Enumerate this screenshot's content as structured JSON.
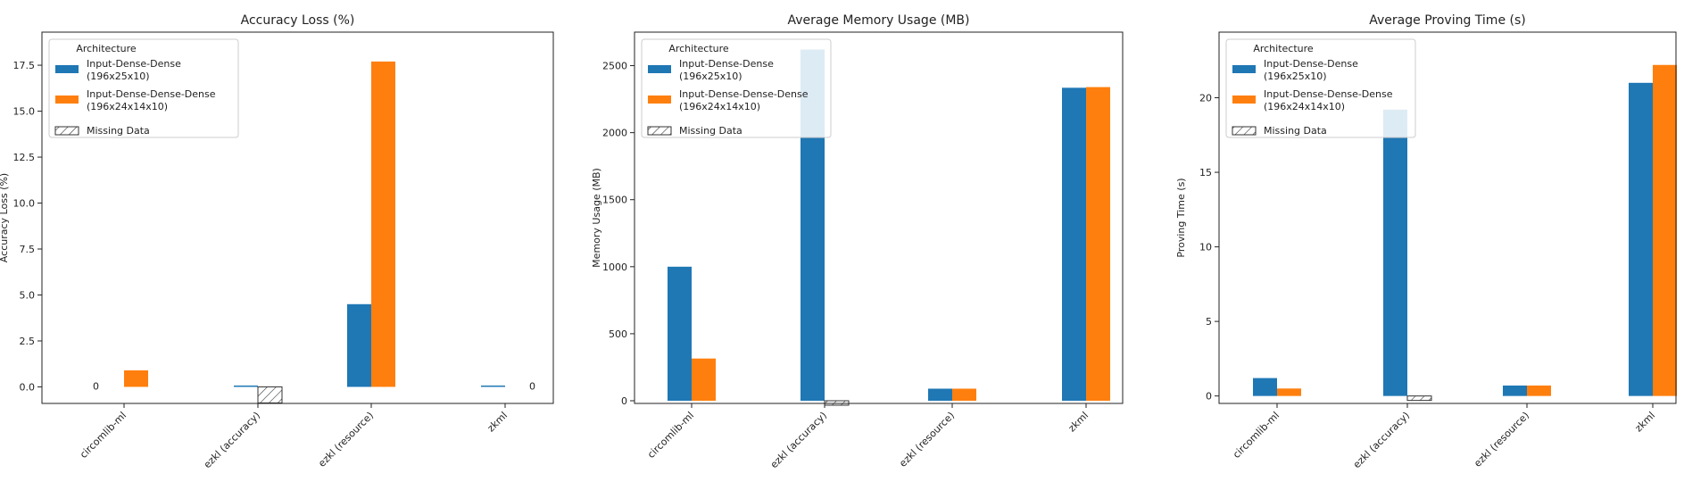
{
  "legend": {
    "title": "Architecture",
    "entries": [
      {
        "key": "idd",
        "label_line1": "Input-Dense-Dense",
        "label_line2": "(196x25x10)",
        "color": "#1f77b4"
      },
      {
        "key": "iddd",
        "label_line1": "Input-Dense-Dense-Dense",
        "label_line2": "(196x24x14x10)",
        "color": "#ff7f0e"
      },
      {
        "key": "missing",
        "label_line1": "Missing Data",
        "label_line2": "",
        "color": "#9a9a9a"
      }
    ]
  },
  "chart_data": [
    {
      "type": "bar",
      "title": "Accuracy Loss (%)",
      "xlabel": "",
      "ylabel": "Accuracy Loss (%)",
      "ylim": [
        -0.9,
        19.3
      ],
      "yticks": [
        0.0,
        2.5,
        5.0,
        7.5,
        10.0,
        12.5,
        15.0,
        17.5
      ],
      "ytick_labels": [
        "0.0",
        "2.5",
        "5.0",
        "7.5",
        "10.0",
        "12.5",
        "15.0",
        "17.5"
      ],
      "categories": [
        "circomlib-ml",
        "ezkl (accuracy)",
        "ezkl (resource)",
        "zkml"
      ],
      "legend_position": "upper-left",
      "grid": false,
      "series": [
        {
          "name": "Input-Dense-Dense (196x25x10)",
          "values": [
            0,
            0.05,
            4.5,
            0.05
          ],
          "missing": [
            false,
            false,
            false,
            false
          ]
        },
        {
          "name": "Input-Dense-Dense-Dense (196x24x14x10)",
          "values": [
            0.9,
            0,
            17.7,
            0
          ],
          "missing": [
            false,
            true,
            false,
            false
          ]
        }
      ],
      "annotations": [
        {
          "category": "circomlib-ml",
          "series": 0,
          "text": "0"
        },
        {
          "category": "zkml",
          "series": 1,
          "text": "0"
        }
      ]
    },
    {
      "type": "bar",
      "title": "Average Memory Usage (MB)",
      "xlabel": "",
      "ylabel": "Memory Usage (MB)",
      "ylim": [
        -20,
        2750
      ],
      "yticks": [
        0,
        500,
        1000,
        1500,
        2000,
        2500
      ],
      "ytick_labels": [
        "0",
        "500",
        "1000",
        "1500",
        "2000",
        "2500"
      ],
      "categories": [
        "circomlib-ml",
        "ezkl (accuracy)",
        "ezkl (resource)",
        "zkml"
      ],
      "legend_position": "upper-left",
      "grid": false,
      "series": [
        {
          "name": "Input-Dense-Dense (196x25x10)",
          "values": [
            1000,
            2620,
            90,
            2335
          ],
          "missing": [
            false,
            false,
            false,
            false
          ]
        },
        {
          "name": "Input-Dense-Dense-Dense (196x24x14x10)",
          "values": [
            315,
            0,
            90,
            2340
          ],
          "missing": [
            false,
            true,
            false,
            false
          ]
        }
      ],
      "annotations": []
    },
    {
      "type": "bar",
      "title": "Average Proving Time (s)",
      "xlabel": "",
      "ylabel": "Proving Time (s)",
      "ylim": [
        -0.5,
        24.4
      ],
      "yticks": [
        0,
        5,
        10,
        15,
        20
      ],
      "ytick_labels": [
        "0",
        "5",
        "10",
        "15",
        "20"
      ],
      "categories": [
        "circomlib-ml",
        "ezkl (accuracy)",
        "ezkl (resource)",
        "zkml"
      ],
      "legend_position": "upper-left",
      "grid": false,
      "series": [
        {
          "name": "Input-Dense-Dense (196x25x10)",
          "values": [
            1.2,
            19.2,
            0.7,
            21.0
          ],
          "missing": [
            false,
            false,
            false,
            false
          ]
        },
        {
          "name": "Input-Dense-Dense-Dense (196x24x14x10)",
          "values": [
            0.5,
            0,
            0.7,
            22.2
          ],
          "missing": [
            false,
            true,
            false,
            false
          ]
        }
      ],
      "annotations": []
    }
  ]
}
